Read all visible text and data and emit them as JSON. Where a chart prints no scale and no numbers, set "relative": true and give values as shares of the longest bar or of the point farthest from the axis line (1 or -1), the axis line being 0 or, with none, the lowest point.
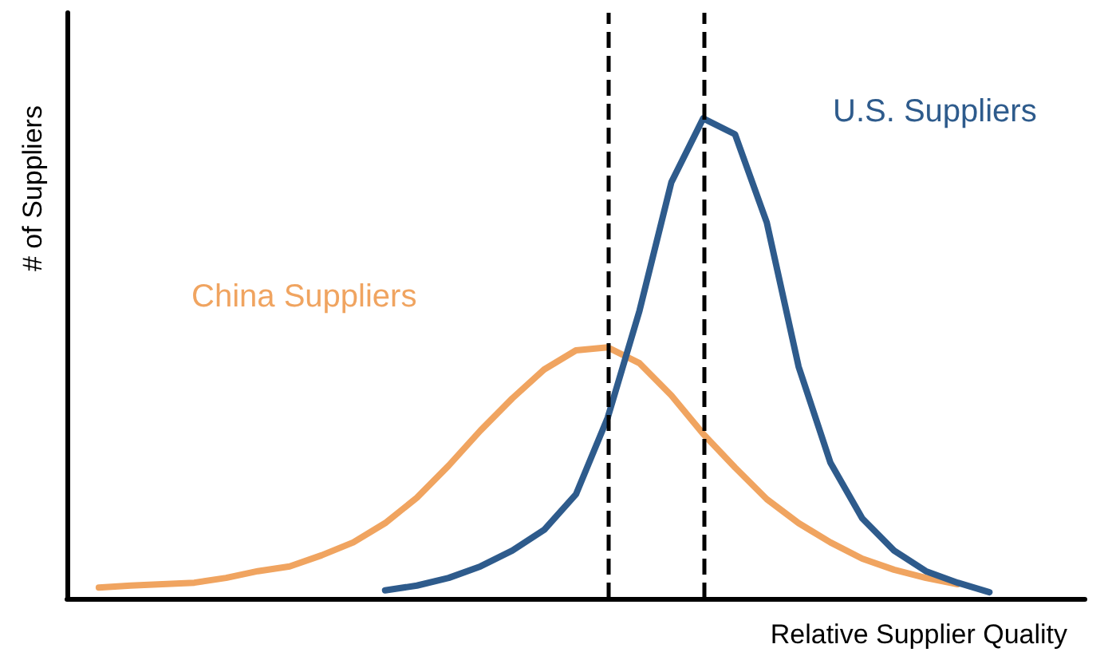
{
  "chart_data": {
    "type": "line",
    "relative": true,
    "xlabel": "Relative Supplier Quality",
    "ylabel": "# of Suppliers",
    "grid": false,
    "legend": false,
    "marker": "none",
    "line_style": "solid",
    "categories": [
      null,
      null,
      null,
      null,
      null,
      null,
      null,
      null,
      null,
      null,
      null,
      null,
      null,
      null,
      null,
      null,
      null,
      null,
      null,
      null,
      null,
      null,
      null,
      null,
      null,
      null,
      null,
      null,
      null,
      null,
      null,
      null,
      null
    ],
    "series": [
      {
        "name": "China Suppliers",
        "color": "#f0a460",
        "values": [
          null,
          0.023,
          0.027,
          0.03,
          0.033,
          0.043,
          0.057,
          0.067,
          0.09,
          0.117,
          0.157,
          0.21,
          0.277,
          0.35,
          0.417,
          0.477,
          0.517,
          0.523,
          0.49,
          0.423,
          0.343,
          0.273,
          0.207,
          0.157,
          0.117,
          0.083,
          0.06,
          0.043,
          0.03,
          null,
          null,
          null,
          null
        ]
      },
      {
        "name": "U.S. Suppliers",
        "color": "#2e5b8c",
        "values": [
          null,
          null,
          null,
          null,
          null,
          null,
          null,
          null,
          null,
          null,
          0.017,
          0.027,
          0.043,
          0.067,
          0.1,
          0.143,
          0.217,
          0.377,
          0.6,
          0.867,
          1,
          0.967,
          0.783,
          0.483,
          0.283,
          0.167,
          0.1,
          0.057,
          0.033,
          0.013,
          null,
          null,
          null
        ]
      }
    ]
  }
}
